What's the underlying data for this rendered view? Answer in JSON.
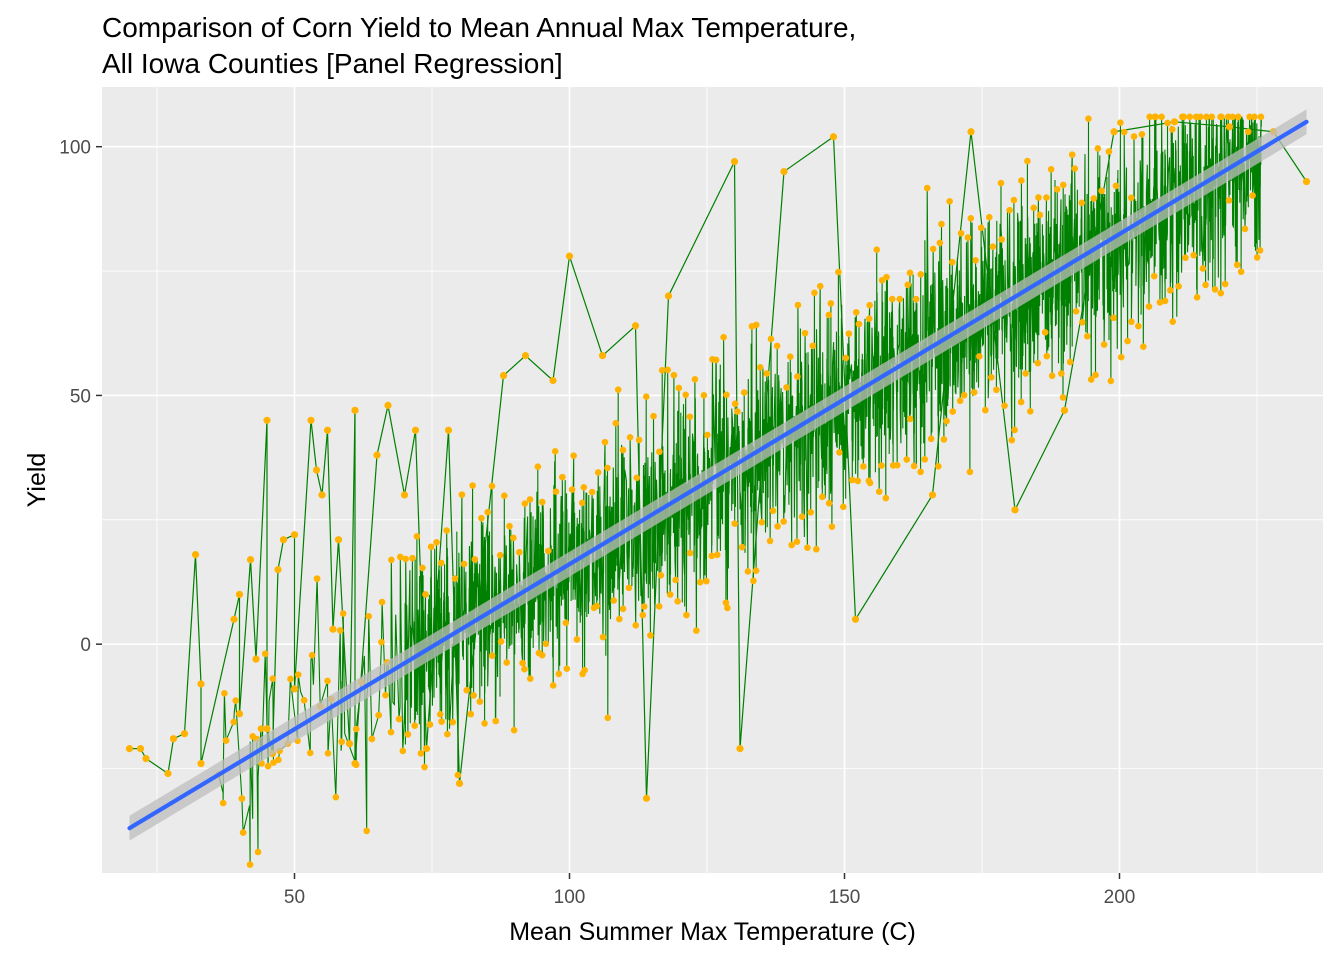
{
  "chart_data": {
    "type": "scatter",
    "title_line1": "Comparison of Corn Yield to Mean Annual Max Temperature,",
    "title_line2": "All Iowa Counties [Panel Regression]",
    "xlabel": "Mean Summer Max Temperature (C)",
    "ylabel": "Yield",
    "xlim": [
      15,
      237
    ],
    "ylim": [
      -46,
      112
    ],
    "x_ticks": [
      50,
      100,
      150,
      200
    ],
    "y_ticks": [
      0,
      50,
      100
    ],
    "point_color": "#FFB300",
    "path_color": "#008000",
    "fit_color": "#3366FF",
    "band_color": "#BEBEBE",
    "panel_color": "#EBEBEB",
    "grid": true,
    "legend": "none",
    "fit_line": {
      "x_start": 20,
      "y_start": -37,
      "x_end": 234,
      "y_end": 105
    },
    "scatter_trend": {
      "slope": 0.66,
      "intercept": -50,
      "spread": 28
    },
    "sample_points": [
      {
        "x": 20,
        "y": -21
      },
      {
        "x": 22,
        "y": -21
      },
      {
        "x": 23,
        "y": -23
      },
      {
        "x": 27,
        "y": -26
      },
      {
        "x": 28,
        "y": -19
      },
      {
        "x": 30,
        "y": -18
      },
      {
        "x": 32,
        "y": 18
      },
      {
        "x": 33,
        "y": -8
      },
      {
        "x": 33,
        "y": -24
      },
      {
        "x": 39,
        "y": 5
      },
      {
        "x": 40,
        "y": 10
      },
      {
        "x": 40,
        "y": -14
      },
      {
        "x": 42,
        "y": 17
      },
      {
        "x": 43,
        "y": -3
      },
      {
        "x": 45,
        "y": 45
      },
      {
        "x": 45,
        "y": -17
      },
      {
        "x": 46,
        "y": -22
      },
      {
        "x": 47,
        "y": 15
      },
      {
        "x": 48,
        "y": 21
      },
      {
        "x": 50,
        "y": 22
      },
      {
        "x": 50,
        "y": -9
      },
      {
        "x": 53,
        "y": 45
      },
      {
        "x": 54,
        "y": 35
      },
      {
        "x": 55,
        "y": 30
      },
      {
        "x": 56,
        "y": 43
      },
      {
        "x": 57,
        "y": 3
      },
      {
        "x": 58,
        "y": 21
      },
      {
        "x": 60,
        "y": -20
      },
      {
        "x": 61,
        "y": 47
      },
      {
        "x": 61,
        "y": -24
      },
      {
        "x": 65,
        "y": 38
      },
      {
        "x": 67,
        "y": 48
      },
      {
        "x": 70,
        "y": 30
      },
      {
        "x": 72,
        "y": 43
      },
      {
        "x": 74,
        "y": -21
      },
      {
        "x": 78,
        "y": 43
      },
      {
        "x": 80,
        "y": -28
      },
      {
        "x": 88,
        "y": 54
      },
      {
        "x": 92,
        "y": 58
      },
      {
        "x": 97,
        "y": 53
      },
      {
        "x": 100,
        "y": 78
      },
      {
        "x": 106,
        "y": 58
      },
      {
        "x": 112,
        "y": 64
      },
      {
        "x": 114,
        "y": -31
      },
      {
        "x": 118,
        "y": 70
      },
      {
        "x": 130,
        "y": 97
      },
      {
        "x": 131,
        "y": -21
      },
      {
        "x": 139,
        "y": 95
      },
      {
        "x": 148,
        "y": 102
      },
      {
        "x": 152,
        "y": 5
      },
      {
        "x": 166,
        "y": 30
      },
      {
        "x": 173,
        "y": 103
      },
      {
        "x": 181,
        "y": 27
      },
      {
        "x": 190,
        "y": 47
      },
      {
        "x": 199,
        "y": 103
      },
      {
        "x": 210,
        "y": 105
      },
      {
        "x": 220,
        "y": 104
      },
      {
        "x": 228,
        "y": 103
      },
      {
        "x": 234,
        "y": 93
      }
    ]
  }
}
